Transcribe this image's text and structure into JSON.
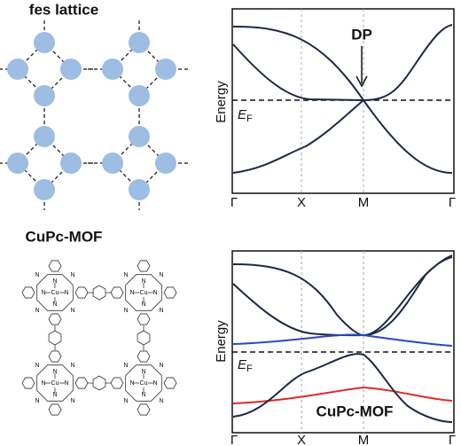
{
  "panels": [
    {
      "title": "fes lattice",
      "band_plot": {
        "y_label": "Energy",
        "fermi_label": {
          "symbol": "E",
          "subscript": "F"
        },
        "k_points": [
          "Γ",
          "X",
          "M",
          "Γ"
        ],
        "annotation": "DP"
      }
    },
    {
      "title": "CuPc-MOF",
      "atom_labels": {
        "metal": "Cu",
        "nitrogen": "N"
      },
      "band_plot": {
        "y_label": "Energy",
        "fermi_label": {
          "symbol": "E",
          "subscript": "F"
        },
        "k_points": [
          "Γ",
          "X",
          "M",
          "Γ"
        ],
        "annotation": "CuPc-MOF"
      }
    }
  ]
}
